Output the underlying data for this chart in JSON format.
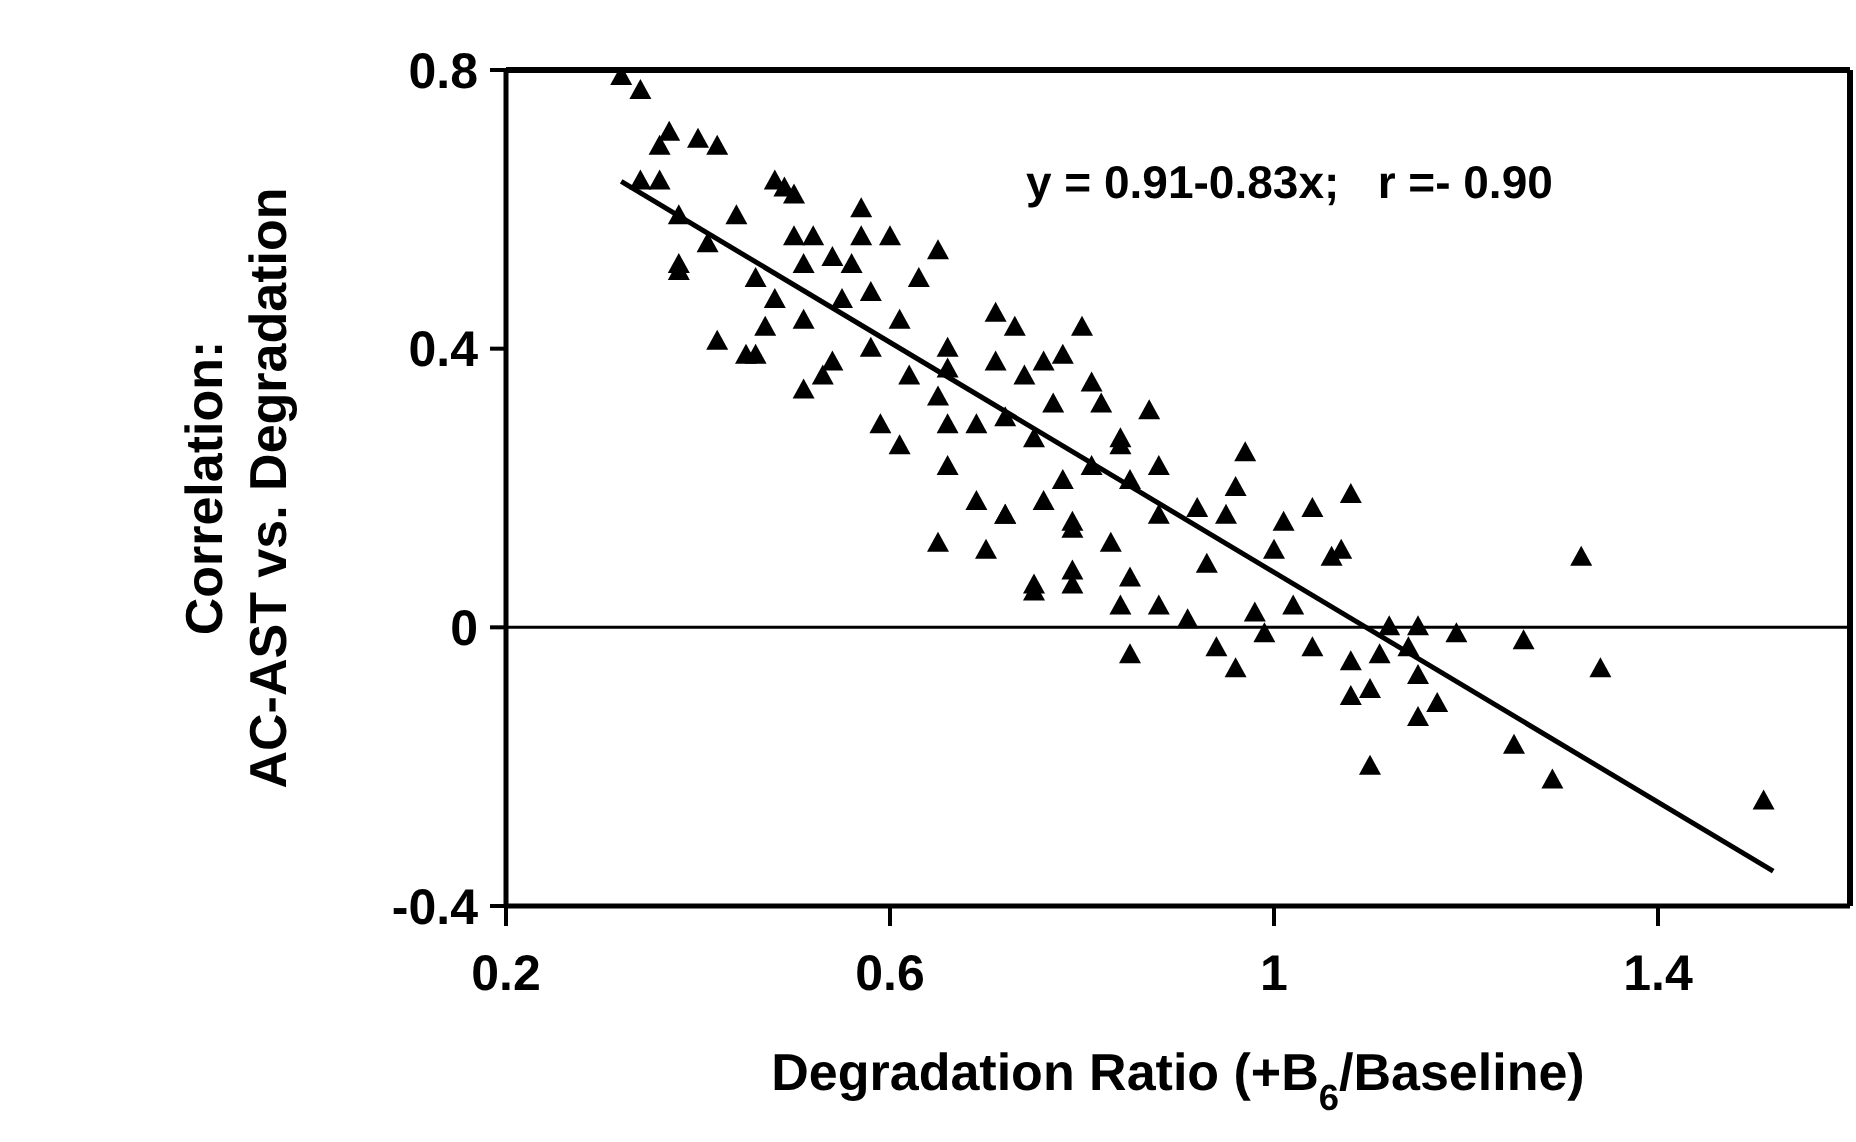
{
  "chart_data": {
    "type": "scatter",
    "xlabel": "Degradation Ratio (+B$_{6}$/Baseline)",
    "ylabel": "Correlation:\nAC-AST vs. Degradation",
    "annotations": [
      "y = 0.91-0.83x;   r =- 0.90"
    ],
    "xlim": [
      0.2,
      1.6
    ],
    "xticks": [
      0.2,
      0.6,
      1,
      1.4
    ],
    "ylim": [
      -0.4,
      0.8
    ],
    "yticks": [
      -0.4,
      0,
      0.4,
      0.8
    ],
    "grid": false,
    "legend": false,
    "marker": "triangle",
    "ref_lines": [
      {
        "axis": "y",
        "value": 0,
        "color": "#000000"
      }
    ],
    "series": [
      {
        "color": "#000000",
        "x": [
          0.32,
          0.34,
          0.36,
          0.37,
          0.4,
          0.42,
          0.38,
          0.38,
          0.42,
          0.45,
          0.48,
          0.5,
          0.44,
          0.57,
          0.65,
          0.8,
          0.87,
          0.97,
          0.96,
          1.08,
          1.04,
          1.01,
          0.95,
          0.92,
          1.32,
          1.07,
          1.06,
          1,
          0.93,
          0.75,
          0.84,
          0.91,
          0.85,
          0.94,
          0.96,
          0.99,
          1.04,
          1.12,
          1.15,
          1.19,
          1.26,
          1.34,
          1.08,
          1.11,
          1.14,
          1.15,
          1.08,
          1.1,
          1.17,
          1.15,
          1.1,
          1.25,
          1.29,
          1.51,
          0.83,
          0.85,
          0.88,
          0.79,
          0.72,
          0.88,
          0.84,
          0.78,
          0.81,
          0.82,
          0.79,
          0.76,
          0.98,
          1.02,
          0.38,
          0.46,
          0.51,
          0.53,
          0.49,
          0.57,
          0.6,
          0.5,
          0.52,
          0.41,
          0.46,
          0.51,
          0.56,
          0.48,
          0.51,
          0.55,
          0.58,
          0.63,
          0.61,
          0.66,
          0.71,
          0.73,
          0.71,
          0.74,
          0.58,
          0.62,
          0.65,
          0.59,
          0.61,
          0.66,
          0.66,
          0.69,
          0.72,
          0.77,
          0.75,
          0.69,
          0.72,
          0.65,
          0.7,
          0.79,
          0.88,
          0.85,
          0.81,
          0.78,
          0.84,
          0.75,
          0.79,
          0.34,
          0.36,
          0.54,
          0.47,
          0.54,
          0.66,
          0.76
        ],
        "values": [
          0.79,
          0.77,
          0.69,
          0.71,
          0.7,
          0.69,
          0.52,
          0.59,
          0.41,
          0.39,
          0.64,
          0.62,
          0.59,
          0.6,
          0.54,
          0.43,
          0.31,
          0.25,
          0.2,
          0.19,
          0.17,
          0.15,
          0.16,
          0.17,
          0.1,
          0.11,
          0.1,
          0.11,
          0.09,
          0.05,
          0.03,
          0.01,
          -0.04,
          -0.03,
          -0.06,
          -0.01,
          -0.03,
          0,
          0,
          -0.01,
          -0.02,
          -0.06,
          -0.05,
          -0.04,
          -0.03,
          -0.07,
          -0.1,
          -0.09,
          -0.11,
          -0.13,
          -0.2,
          -0.17,
          -0.22,
          -0.25,
          0.12,
          0.07,
          0.03,
          0.08,
          0.16,
          0.23,
          0.27,
          0.39,
          0.35,
          0.32,
          0.15,
          0.18,
          0.02,
          0.03,
          0.51,
          0.39,
          0.34,
          0.36,
          0.63,
          0.56,
          0.56,
          0.56,
          0.56,
          0.55,
          0.5,
          0.52,
          0.52,
          0.47,
          0.44,
          0.47,
          0.48,
          0.5,
          0.44,
          0.4,
          0.45,
          0.43,
          0.38,
          0.36,
          0.4,
          0.36,
          0.33,
          0.29,
          0.26,
          0.29,
          0.23,
          0.29,
          0.3,
          0.32,
          0.27,
          0.18,
          0.16,
          0.12,
          0.11,
          0.14,
          0.16,
          0.21,
          0.23,
          0.21,
          0.26,
          0.06,
          0.06,
          0.64,
          0.64,
          0.53,
          0.43,
          0.38,
          0.37,
          0.38
        ]
      },
      {
        "type": "line",
        "color": "#000000",
        "marker": "none",
        "x": [
          0.32,
          1.52
        ],
        "values": [
          0.64,
          -0.35
        ]
      }
    ]
  }
}
